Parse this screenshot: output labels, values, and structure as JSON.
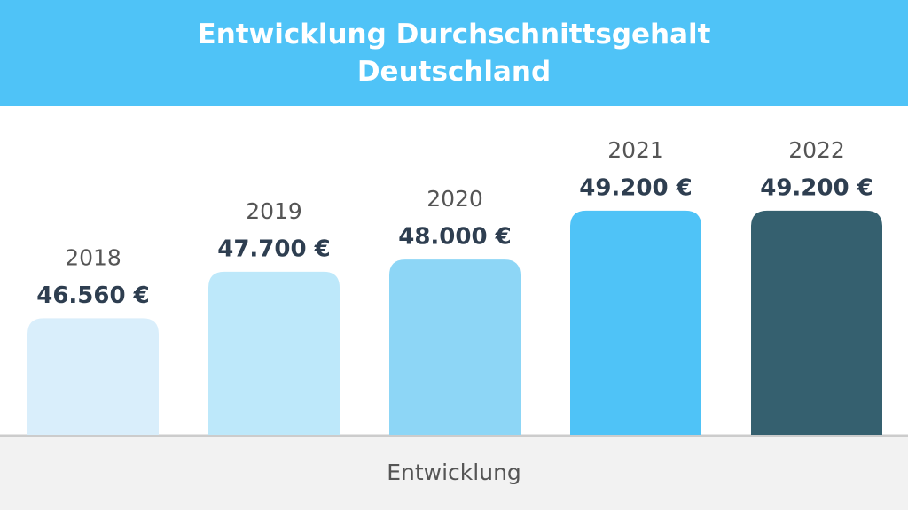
{
  "chart_data": {
    "type": "bar",
    "title": "Entwicklung Durchschnittsgehalt Deutschland",
    "x_label": "Entwicklung",
    "categories": [
      "2018",
      "2019",
      "2020",
      "2021",
      "2022"
    ],
    "values": [
      46560,
      47700,
      48000,
      49200,
      49200
    ],
    "value_labels": [
      "46.560 €",
      "47.700 €",
      "48.000 €",
      "49.200 €",
      "49.200 €"
    ],
    "colors": [
      "#d9eefb",
      "#bde8fa",
      "#8dd6f6",
      "#4fc3f7",
      "#35606f"
    ],
    "ylim": [
      43700,
      50000
    ]
  }
}
